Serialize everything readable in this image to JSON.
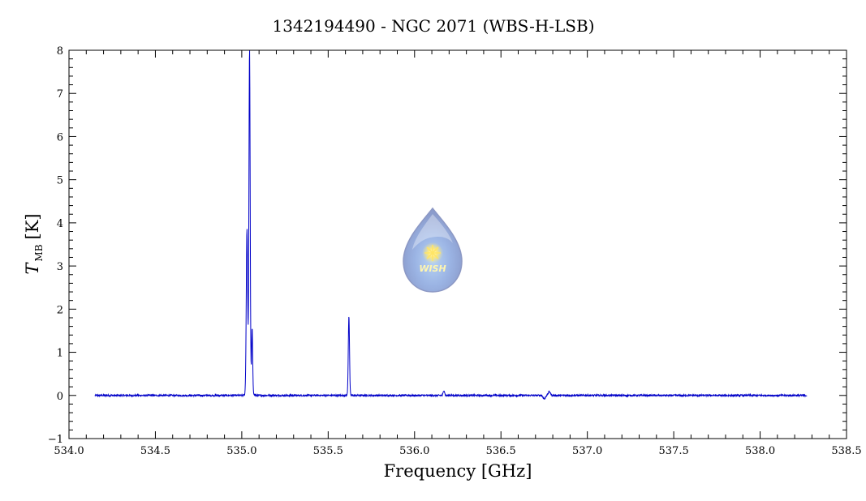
{
  "chart_data": {
    "type": "line",
    "title": "1342194490 - NGC 2071 (WBS-H-LSB)",
    "xlabel": "Frequency [GHz]",
    "ylabel_main": "T",
    "ylabel_sub": "MB",
    "ylabel_unit": "[K]",
    "xlim": [
      534.0,
      538.5
    ],
    "ylim": [
      -1,
      8
    ],
    "xticks": [
      534.0,
      534.5,
      535.0,
      535.5,
      536.0,
      536.5,
      537.0,
      537.5,
      538.0,
      538.5
    ],
    "xtick_labels": [
      "534.0",
      "534.5",
      "535.0",
      "535.5",
      "536.0",
      "536.5",
      "537.0",
      "537.5",
      "538.0",
      "538.5"
    ],
    "yticks": [
      -1,
      0,
      1,
      2,
      3,
      4,
      5,
      6,
      7,
      8
    ],
    "ytick_labels": [
      "−1",
      "0",
      "1",
      "2",
      "3",
      "4",
      "5",
      "6",
      "7",
      "8"
    ],
    "grid": false,
    "line_color": "#0000c8",
    "series": [
      {
        "x_range": [
          534.15,
          538.27
        ],
        "baseline": 0.0,
        "peaks": [
          {
            "x": 535.03,
            "y": 3.7
          },
          {
            "x": 535.045,
            "y": 7.7
          },
          {
            "x": 535.06,
            "y": 1.4
          },
          {
            "x": 535.62,
            "y": 1.85
          },
          {
            "x": 536.17,
            "y": 0.12
          },
          {
            "x": 536.78,
            "y": 0.09
          }
        ]
      }
    ]
  },
  "watermark": {
    "text": "WISH"
  }
}
